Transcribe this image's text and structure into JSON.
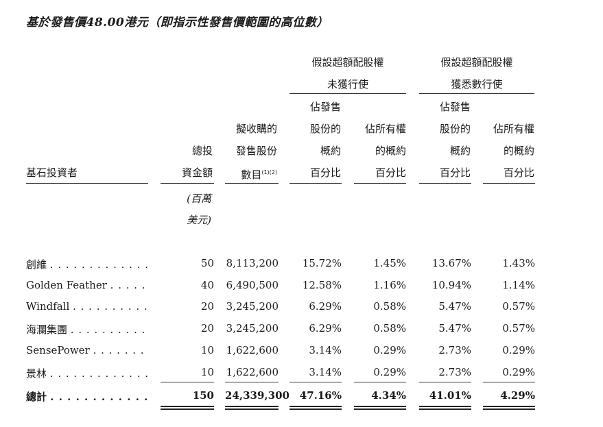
{
  "title": "基於發售價48.00港元（即指示性發售價範圍的高位數）",
  "group_headers": {
    "not_exercised": [
      "假設超額配股權",
      "未獲行使"
    ],
    "fully_exercised": [
      "假設超額配股權",
      "獲悉數行使"
    ]
  },
  "col_headers": {
    "investor": "基石投資者",
    "amount": [
      "總投",
      "資金額"
    ],
    "shares": [
      "擬收購的",
      "發售股份",
      "數目"
    ],
    "shares_note": "(1)(2)",
    "pct_offer": [
      "佔發售",
      "股份的",
      "概約",
      "百分比"
    ],
    "pct_total": [
      "佔所有權",
      "的概約",
      "百分比"
    ]
  },
  "unit": [
    "(百萬",
    "美元)"
  ],
  "rows": [
    {
      "name": "創維",
      "dots": ". . . . . . . . . . . . . . . . .",
      "amount": "50",
      "shares": "8,113,200",
      "p1": "15.72%",
      "p2": "1.45%",
      "p3": "13.67%",
      "p4": "1.43%"
    },
    {
      "name": "Golden Feather",
      "dots": ". . . . . . . . .",
      "amount": "40",
      "shares": "6,490,500",
      "p1": "12.58%",
      "p2": "1.16%",
      "p3": "10.94%",
      "p4": "1.14%"
    },
    {
      "name": "Windfall",
      "dots": ". . . . . . . . . . . . . .",
      "amount": "20",
      "shares": "3,245,200",
      "p1": "6.29%",
      "p2": "0.58%",
      "p3": "5.47%",
      "p4": "0.57%"
    },
    {
      "name": "海瀾集團",
      "dots": ". . . . . . . . . . . . .",
      "amount": "20",
      "shares": "3,245,200",
      "p1": "6.29%",
      "p2": "0.58%",
      "p3": "5.47%",
      "p4": "0.57%"
    },
    {
      "name": "SensePower",
      "dots": ". . . . . . . . . . . .",
      "amount": "10",
      "shares": "1,622,600",
      "p1": "3.14%",
      "p2": "0.29%",
      "p3": "2.73%",
      "p4": "0.29%"
    },
    {
      "name": "景林",
      "dots": ". . . . . . . . . . . . . . . . .",
      "amount": "10",
      "shares": "1,622,600",
      "p1": "3.14%",
      "p2": "0.29%",
      "p3": "2.73%",
      "p4": "0.29%"
    }
  ],
  "total": {
    "name": "總計",
    "dots": ". . . . . . . . . . . . . . . . .",
    "amount": "150",
    "shares": "24,339,300",
    "p1": "47.16%",
    "p2": "4.34%",
    "p3": "41.01%",
    "p4": "4.29%"
  }
}
